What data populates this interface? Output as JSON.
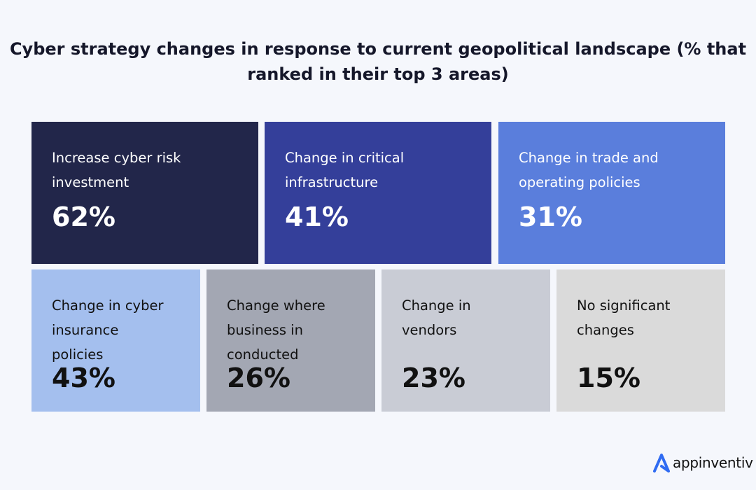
{
  "title": "Cyber strategy changes in response to current geopolitical landscape (% that ranked in their top 3 areas)",
  "chart_data": {
    "type": "table",
    "title": "Cyber strategy changes in response to current geopolitical landscape (% that ranked in their top 3 areas)",
    "categories": [
      "Increase cyber risk investment",
      "Change in critical infrastructure",
      "Change in trade and operating policies",
      "Change in cyber insurance policies",
      "Change where business in conducted",
      "Change in vendors",
      "No significant changes"
    ],
    "values": [
      62,
      41,
      31,
      43,
      26,
      23,
      15
    ],
    "tiles": [
      {
        "label": "Increase cyber risk\ninvestment",
        "value": "62%",
        "color": "#22264a",
        "text_color": "#ffffff"
      },
      {
        "label": "Change in critical\ninfrastructure",
        "value": "41%",
        "color": "#343f9a",
        "text_color": "#ffffff"
      },
      {
        "label": "Change in trade and\noperating policies",
        "value": "31%",
        "color": "#5a7edc",
        "text_color": "#ffffff"
      },
      {
        "label": "Change in cyber\ninsurance\npolicies",
        "value": "43%",
        "color": "#a4bfee",
        "text_color": "#111111"
      },
      {
        "label": "Change where\nbusiness in\nconducted",
        "value": "26%",
        "color": "#a3a7b3",
        "text_color": "#111111"
      },
      {
        "label": "Change in\nvendors",
        "value": "23%",
        "color": "#c9ccd5",
        "text_color": "#111111"
      },
      {
        "label": "No significant\nchanges",
        "value": "15%",
        "color": "#dadada",
        "text_color": "#111111"
      }
    ]
  },
  "logo": {
    "text": "appinventiv",
    "color": "#2f6bf2"
  }
}
